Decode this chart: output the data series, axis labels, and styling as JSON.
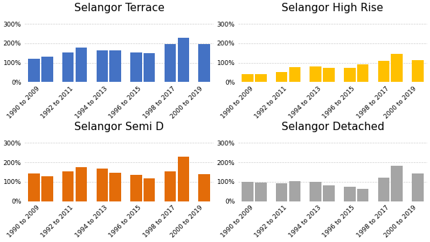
{
  "subplots": [
    {
      "title": "Selangor Terrace",
      "color": "#4472C4",
      "values": [
        120,
        130,
        152,
        178,
        165,
        163,
        153,
        148,
        195,
        230,
        198
      ]
    },
    {
      "title": "Selangor High Rise",
      "color": "#FFC000",
      "values": [
        42,
        42,
        52,
        78,
        80,
        73,
        73,
        93,
        110,
        145,
        112
      ]
    },
    {
      "title": "Selangor Semi D",
      "color": "#E36C09",
      "values": [
        142,
        130,
        152,
        175,
        168,
        148,
        135,
        118,
        152,
        230,
        138
      ]
    },
    {
      "title": "Selangor Detached",
      "color": "#A5A5A5",
      "values": [
        100,
        95,
        93,
        103,
        100,
        82,
        75,
        65,
        122,
        183,
        143
      ]
    }
  ],
  "x_labels": [
    "1990 to 2009",
    "1992 to 2011",
    "1994 to 2013",
    "1996 to 2015",
    "1998 to 2017",
    "2000 to 2019"
  ],
  "ylim": [
    0,
    350
  ],
  "yticks": [
    0,
    100,
    200,
    300
  ],
  "background_color": "#FFFFFF",
  "title_fontsize": 11,
  "tick_fontsize": 6.5,
  "grid_color": "#CCCCCC",
  "bar_width": 0.75
}
